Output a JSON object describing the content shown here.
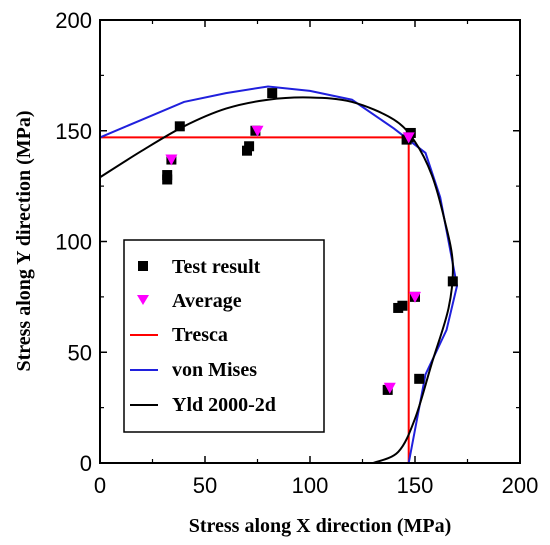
{
  "chart_data": {
    "type": "scatter",
    "xlabel": "Stress along X direction (MPa)",
    "ylabel": "Stress along Y direction (MPa)",
    "xlim": [
      0,
      200
    ],
    "ylim": [
      0,
      200
    ],
    "xticks": [
      0,
      50,
      100,
      150,
      200
    ],
    "yticks": [
      0,
      50,
      100,
      150,
      200
    ],
    "x_tick_labels": [
      "0",
      "50",
      "100",
      "150",
      "200"
    ],
    "y_tick_labels": [
      "0",
      "50",
      "100",
      "150",
      "200"
    ],
    "grid": false,
    "legend_position": "bottom-left",
    "series": [
      {
        "name": "Test result",
        "kind": "scatter",
        "marker": "square",
        "color": "#000000",
        "points": [
          [
            32,
            128
          ],
          [
            32,
            130
          ],
          [
            34,
            137
          ],
          [
            38,
            152
          ],
          [
            70,
            141
          ],
          [
            71,
            143
          ],
          [
            74,
            150
          ],
          [
            82,
            167
          ],
          [
            137,
            33
          ],
          [
            142,
            70
          ],
          [
            144,
            71
          ],
          [
            146,
            146
          ],
          [
            147,
            147
          ],
          [
            148,
            149
          ],
          [
            150,
            75
          ],
          [
            152,
            38
          ],
          [
            168,
            82
          ]
        ]
      },
      {
        "name": "Average",
        "kind": "scatter",
        "marker": "triangle-down",
        "color": "#ff00ff",
        "points": [
          [
            34,
            137
          ],
          [
            75,
            150
          ],
          [
            138,
            34
          ],
          [
            147,
            147
          ],
          [
            150,
            75
          ]
        ]
      },
      {
        "name": "Tresca",
        "kind": "line",
        "color": "#ff0000",
        "points": [
          [
            0,
            147
          ],
          [
            147,
            147
          ],
          [
            147,
            0
          ]
        ]
      },
      {
        "name": "von Mises",
        "kind": "line",
        "color": "#2020dd",
        "points": [
          [
            0,
            147
          ],
          [
            20,
            155
          ],
          [
            40,
            163
          ],
          [
            60,
            167
          ],
          [
            80,
            170
          ],
          [
            100,
            168
          ],
          [
            120,
            164
          ],
          [
            140,
            151
          ],
          [
            155,
            140
          ],
          [
            162,
            120
          ],
          [
            170,
            80
          ],
          [
            165,
            60
          ],
          [
            155,
            40
          ],
          [
            147,
            0
          ]
        ]
      },
      {
        "name": "Yld 2000-2d",
        "kind": "line",
        "color": "#000000",
        "points": [
          [
            0,
            129
          ],
          [
            20,
            141
          ],
          [
            40,
            152
          ],
          [
            60,
            160
          ],
          [
            80,
            164
          ],
          [
            100,
            165
          ],
          [
            120,
            163
          ],
          [
            140,
            155
          ],
          [
            150,
            145
          ],
          [
            158,
            130
          ],
          [
            164,
            110
          ],
          [
            168,
            90
          ],
          [
            166,
            70
          ],
          [
            158,
            45
          ],
          [
            150,
            20
          ],
          [
            142,
            5
          ],
          [
            130,
            0
          ]
        ]
      }
    ]
  }
}
